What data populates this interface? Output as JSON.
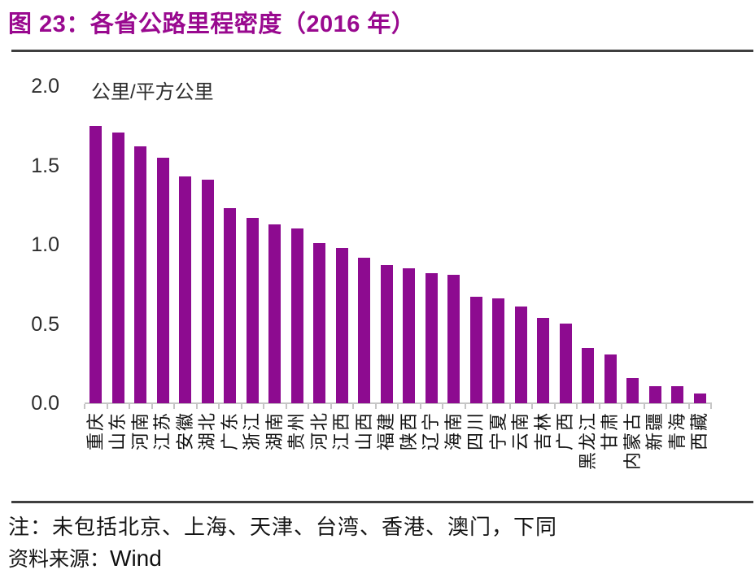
{
  "title": "图 23：各省公路里程密度（2016 年）",
  "chart_data": {
    "type": "bar",
    "title": "各省公路里程密度（2016 年）",
    "unit_label": "公里/平方公里",
    "categories": [
      "重庆",
      "山东",
      "河南",
      "江苏",
      "安徽",
      "湖北",
      "广东",
      "浙江",
      "湖南",
      "贵州",
      "河北",
      "江西",
      "山西",
      "福建",
      "陕西",
      "辽宁",
      "海南",
      "四川",
      "宁夏",
      "云南",
      "吉林",
      "广西",
      "黑龙江",
      "甘肃",
      "内蒙古",
      "新疆",
      "青海",
      "西藏"
    ],
    "values": [
      1.75,
      1.71,
      1.62,
      1.55,
      1.43,
      1.41,
      1.23,
      1.17,
      1.13,
      1.1,
      1.01,
      0.98,
      0.92,
      0.87,
      0.85,
      0.82,
      0.81,
      0.67,
      0.66,
      0.61,
      0.54,
      0.5,
      0.35,
      0.31,
      0.16,
      0.11,
      0.11,
      0.06
    ],
    "ylabel": "公里/平方公里",
    "xlabel": "",
    "ylim": [
      0,
      2.0
    ],
    "yticks": [
      "0.0",
      "0.5",
      "1.0",
      "1.5",
      "2.0"
    ],
    "grid": false,
    "legend": "none",
    "bar_color": "#8d0b90"
  },
  "footer": {
    "note": "注：未包括北京、上海、天津、台湾、香港、澳门，下同",
    "source_label": "资料来源：",
    "source_value": "Wind"
  },
  "colors": {
    "title": "#99098f",
    "bar": "#8d0b90",
    "axis": "#c6c6c6",
    "rule": "#3f3f3f",
    "text": "#2d2d2d"
  }
}
